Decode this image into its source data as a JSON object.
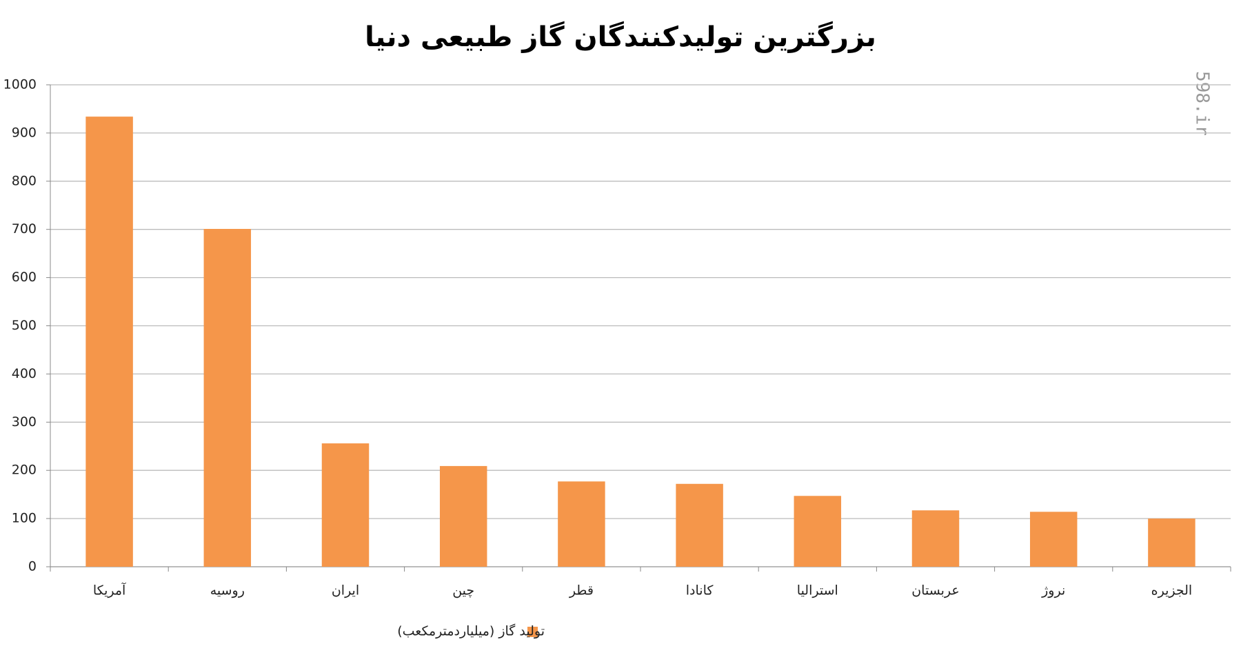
{
  "chart_data": {
    "type": "bar",
    "title": "بزرگترین تولیدکنندگان گاز طبیعی دنیا",
    "watermark": "598.ir",
    "categories": [
      "آمریکا",
      "روسیه",
      "ایران",
      "چین",
      "قطر",
      "کانادا",
      "استرالیا",
      "عربستان",
      "نروژ",
      "الجزیره"
    ],
    "series": [
      {
        "name": "تولید گاز (میلیاردمترمکعب)",
        "color": "#f5964a",
        "values": [
          934,
          701,
          256,
          209,
          177,
          172,
          147,
          117,
          114,
          100
        ]
      }
    ],
    "ylim": [
      0,
      1000
    ],
    "yticks": [
      0,
      100,
      200,
      300,
      400,
      500,
      600,
      700,
      800,
      900,
      1000
    ],
    "grid": true,
    "legend": "bottom"
  }
}
